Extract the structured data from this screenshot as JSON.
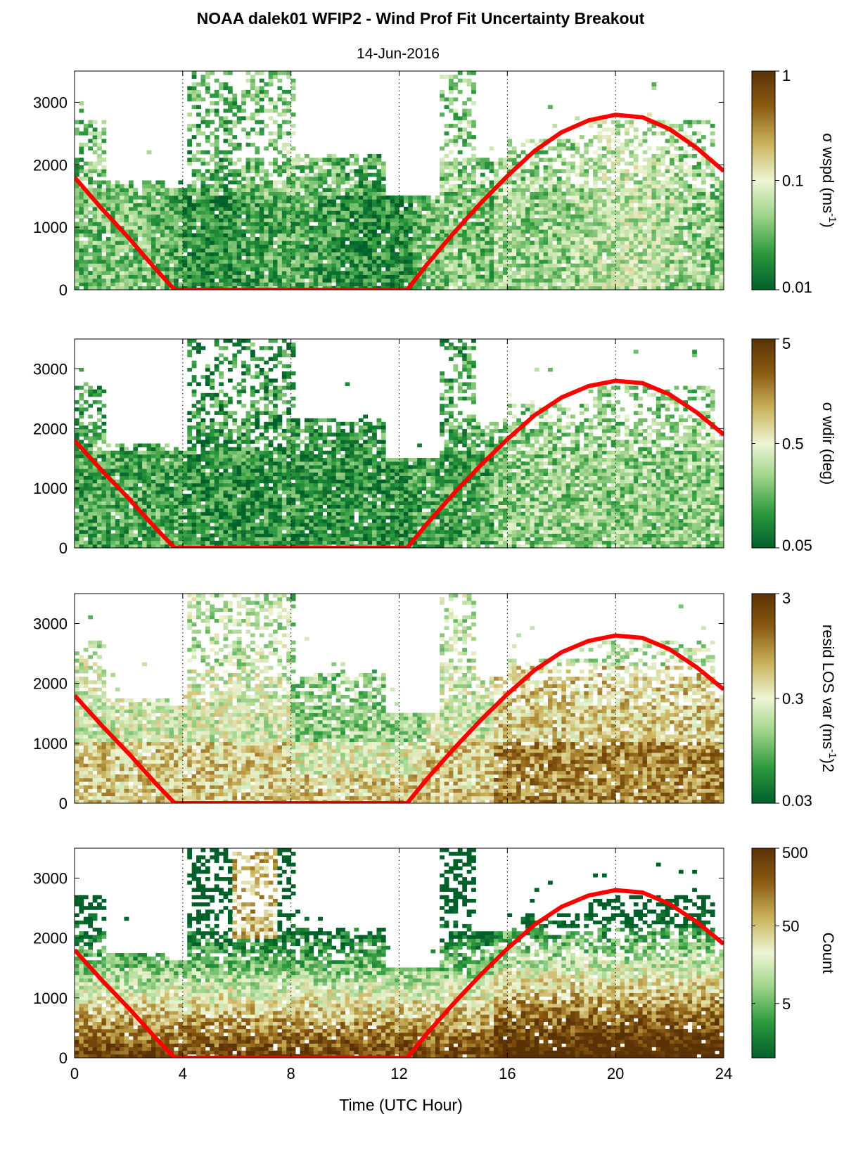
{
  "title": "NOAA dalek01 WFIP2 - Wind Prof Fit Uncertainty Breakout",
  "subtitle": "14-Jun-2016",
  "xlabel": "Time (UTC Hour)",
  "chart_data": {
    "type": "heatmap",
    "title": "NOAA dalek01 WFIP2 - Wind Prof Fit Uncertainty Breakout",
    "subtitle": "14-Jun-2016",
    "xlabel": "Time (UTC Hour)",
    "xlim": [
      0,
      24
    ],
    "ylim": [
      0,
      3500
    ],
    "x_ticks": [
      "0",
      "4",
      "8",
      "12",
      "16",
      "20",
      "24"
    ],
    "y_ticks": [
      "0",
      "1000",
      "2000",
      "3000"
    ],
    "vertical_gridlines_at": [
      4,
      8,
      12,
      16,
      20
    ],
    "colormap": [
      "#00602a",
      "#2e9a3e",
      "#9fd48a",
      "#eef5d4",
      "#c9b15a",
      "#8a5a12",
      "#5a3205"
    ],
    "overlay_line": {
      "color": "#ff0000",
      "x": [
        0,
        1,
        2,
        3,
        3.7,
        4,
        6,
        8,
        10,
        12,
        12.3,
        13,
        14,
        15,
        16,
        17,
        18,
        19,
        20,
        21,
        22,
        23,
        24
      ],
      "y": [
        1800,
        1300,
        830,
        330,
        0,
        0,
        0,
        0,
        0,
        0,
        0,
        390,
        900,
        1380,
        1820,
        2220,
        2520,
        2710,
        2800,
        2760,
        2570,
        2270,
        1900
      ]
    },
    "panels": [
      {
        "colorbar_label": "σ wspd (ms",
        "colorbar_sup": "-1",
        "colorbar_label_end": ")",
        "colorbar_scale": "log",
        "colorbar_ticks": [
          "1",
          "0.1",
          "0.01"
        ],
        "colorbar_range": [
          0.01,
          1
        ]
      },
      {
        "colorbar_label": "σ wdir (deg)",
        "colorbar_sup": "",
        "colorbar_label_end": "",
        "colorbar_scale": "log",
        "colorbar_ticks": [
          "5",
          "0.5",
          "0.05"
        ],
        "colorbar_range": [
          0.05,
          5
        ]
      },
      {
        "colorbar_label": "resid LOS var (ms",
        "colorbar_sup": "-1",
        "colorbar_label_end": ")2",
        "colorbar_scale": "log",
        "colorbar_ticks": [
          "3",
          "0.3",
          "0.03"
        ],
        "colorbar_range": [
          0.03,
          3
        ]
      },
      {
        "colorbar_label": "Count",
        "colorbar_sup": "",
        "colorbar_label_end": "",
        "colorbar_scale": "log",
        "colorbar_ticks": [
          "500",
          "50",
          "5"
        ],
        "colorbar_range": [
          1,
          500
        ]
      }
    ]
  }
}
